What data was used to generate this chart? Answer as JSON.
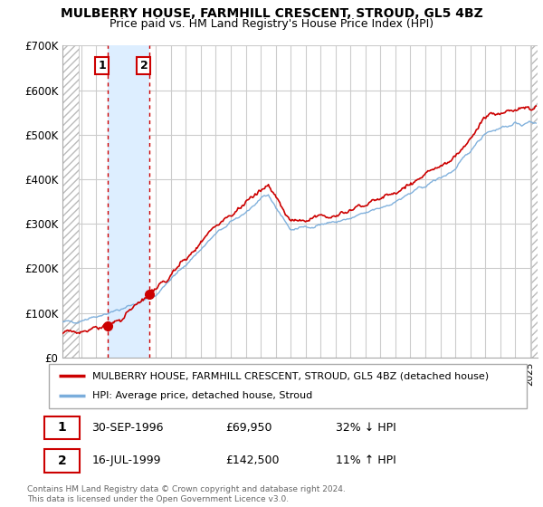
{
  "title": "MULBERRY HOUSE, FARMHILL CRESCENT, STROUD, GL5 4BZ",
  "subtitle": "Price paid vs. HM Land Registry's House Price Index (HPI)",
  "legend_line1": "MULBERRY HOUSE, FARMHILL CRESCENT, STROUD, GL5 4BZ (detached house)",
  "legend_line2": "HPI: Average price, detached house, Stroud",
  "transaction1_date": "30-SEP-1996",
  "transaction1_price": "£69,950",
  "transaction1_hpi": "32% ↓ HPI",
  "transaction2_date": "16-JUL-1999",
  "transaction2_price": "£142,500",
  "transaction2_hpi": "11% ↑ HPI",
  "footnote": "Contains HM Land Registry data © Crown copyright and database right 2024.\nThis data is licensed under the Open Government Licence v3.0.",
  "ylim": [
    0,
    700000
  ],
  "yticks": [
    0,
    100000,
    200000,
    300000,
    400000,
    500000,
    600000,
    700000
  ],
  "ytick_labels": [
    "£0",
    "£100K",
    "£200K",
    "£300K",
    "£400K",
    "£500K",
    "£600K",
    "£700K"
  ],
  "xlim_start": 1993.75,
  "xlim_end": 2025.5,
  "transaction1_x": 1996.75,
  "transaction1_y": 69950,
  "transaction2_x": 1999.54,
  "transaction2_y": 142500,
  "line_color_price": "#cc0000",
  "line_color_hpi": "#7aaddb",
  "vline_color": "#cc0000",
  "transaction_box_color": "#cc0000",
  "hatch_color": "#d8d8d8",
  "blue_span_color": "#ddeeff",
  "grid_color": "#cccccc"
}
